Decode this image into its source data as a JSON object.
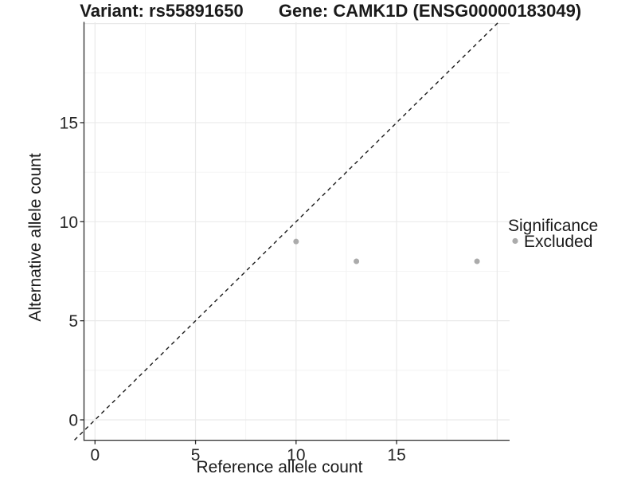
{
  "figure": {
    "title_left": "Variant: rs55891650",
    "title_right": "Gene: CAMK1D (ENSG00000183049)"
  },
  "axes": {
    "x": {
      "label": "Reference allele count",
      "ticks": [
        "0",
        "5",
        "10",
        "15"
      ]
    },
    "y": {
      "label": "Alternative allele count",
      "ticks": [
        "0",
        "5",
        "10",
        "15"
      ]
    }
  },
  "legend": {
    "title": "Significance",
    "items": [
      {
        "label": "Excluded",
        "marker": "circle-icon",
        "color": "#ababab"
      }
    ]
  },
  "colors": {
    "background": "#ffffff",
    "grid_major": "#e9e9e9",
    "grid_minor": "#f1f1f1",
    "axis_line": "#2a2a2a",
    "point": "#ababab",
    "reference_line": "#1a1a1a",
    "text": "#1a1a1a"
  },
  "chart_data": {
    "type": "scatter",
    "title": "Variant: rs55891650 | Gene: CAMK1D (ENSG00000183049)",
    "xlabel": "Reference allele count",
    "ylabel": "Alternative allele count",
    "xlim": [
      -0.55,
      20.6
    ],
    "ylim": [
      -1.05,
      20.1
    ],
    "x_major_ticks": [
      0,
      5,
      10,
      15
    ],
    "y_major_ticks": [
      0,
      5,
      10,
      15
    ],
    "x_grid_major": [
      0,
      5,
      10,
      15,
      20
    ],
    "x_grid_minor": [
      2.5,
      7.5,
      12.5,
      17.5
    ],
    "y_grid_major": [
      0,
      5,
      10,
      15,
      20
    ],
    "y_grid_minor": [
      2.5,
      7.5,
      12.5,
      17.5
    ],
    "grid": true,
    "legend_position": "right",
    "legend_title": "Significance",
    "series": [
      {
        "name": "Excluded",
        "color": "#ababab",
        "points": [
          {
            "x": 10,
            "y": 9
          },
          {
            "x": 13,
            "y": 8
          },
          {
            "x": 19,
            "y": 8
          }
        ]
      }
    ],
    "reference_line": {
      "kind": "identity",
      "slope": 1,
      "intercept": 0,
      "style": "dashed",
      "color": "#1a1a1a"
    }
  }
}
